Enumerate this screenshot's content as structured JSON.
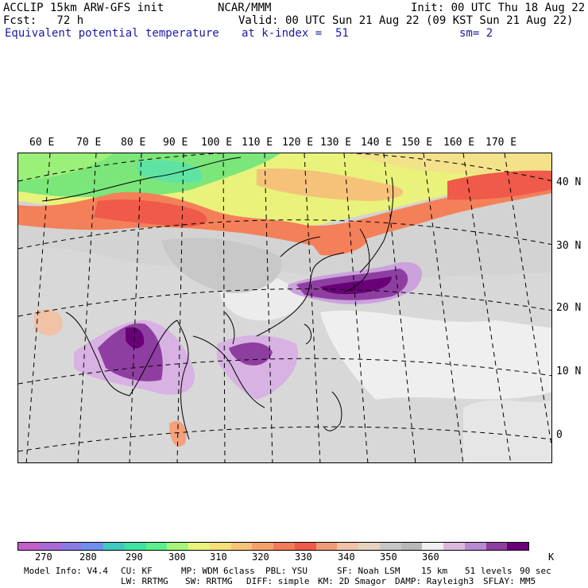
{
  "header": {
    "left1": "ACCLIP 15km ARW-GFS init",
    "left2": "Fcst:   72 h",
    "left3": "Equivalent potential temperature",
    "center1": "NCAR/MMM",
    "init": "Init: 00 UTC Thu 18 Aug 22",
    "valid": "Valid: 00 UTC Sun 21 Aug 22 (09 KST Sun 21 Aug 22)",
    "kindex": "at k-index =  51",
    "sm": "sm= 2"
  },
  "longitude_labels": [
    "60 E",
    "70 E",
    "80 E",
    "90 E",
    "100 E",
    "110 E",
    "120 E",
    "130 E",
    "140 E",
    "150 E",
    "160 E",
    "170 E"
  ],
  "latitude_labels": [
    "40 N",
    "30 N",
    "20 N",
    "10 N",
    "0"
  ],
  "colorbar": {
    "colors": [
      "#c25fc9",
      "#a96ad6",
      "#8a7be6",
      "#6f8ff0",
      "#3fc9c0",
      "#3ee3a4",
      "#5bf08c",
      "#a6f57a",
      "#e7f57a",
      "#f7e07a",
      "#f7c27a",
      "#f7a16a",
      "#f57a5a",
      "#f05a4a",
      "#f09a7a",
      "#f0c2a6",
      "#e8d2c2",
      "#c6c6c6",
      "#b8b8b8",
      "#f0f0f0",
      "#dcb8e0",
      "#b98ad0",
      "#8e3ea0",
      "#6a0078"
    ],
    "labels": [
      "270",
      "280",
      "290",
      "300",
      "310",
      "320",
      "330",
      "340",
      "350",
      "360",
      "K"
    ]
  },
  "footer": {
    "line1": [
      "Model Info: V4.4",
      "CU: KF",
      "MP: WDM 6class",
      "PBL: YSU",
      "SF: Noah LSM",
      "15 km",
      "51 levels",
      "90 sec"
    ],
    "line2": [
      "LW: RRTMG",
      "SW: RRTMG",
      "DIFF: simple",
      "KM: 2D Smagor",
      "DAMP: Rayleigh3",
      "SFLAY: MM5"
    ]
  }
}
